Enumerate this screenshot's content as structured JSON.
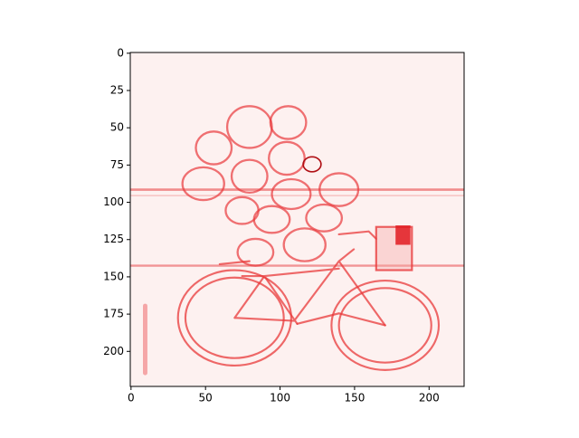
{
  "chart_data": {
    "type": "image",
    "colormap": "Reds",
    "xlim": [
      -0.5,
      223.5
    ],
    "ylim": [
      223.5,
      -0.5
    ],
    "xticks": [
      0,
      50,
      100,
      150,
      200
    ],
    "yticks": [
      0,
      25,
      50,
      75,
      100,
      125,
      150,
      175,
      200
    ]
  }
}
